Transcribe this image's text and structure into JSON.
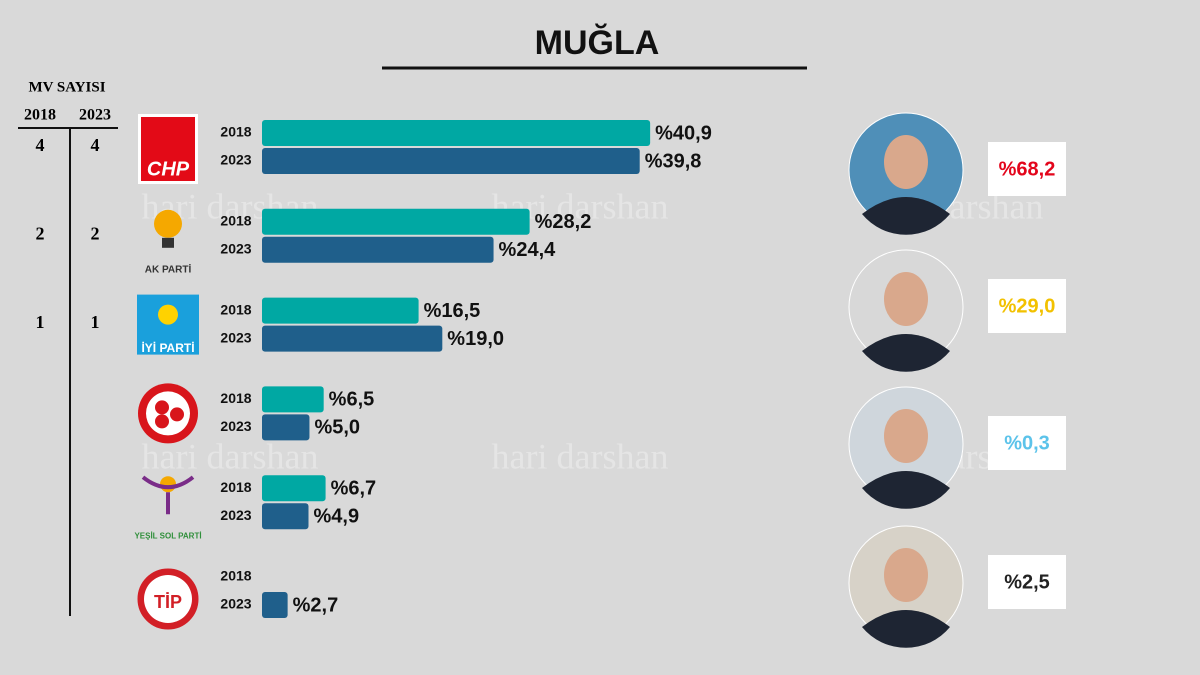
{
  "title": "MUĞLA",
  "watermark": "hari darshan",
  "seats": {
    "title": "MV SAYISI",
    "headers": [
      "2018",
      "2023"
    ],
    "rows": [
      [
        "4",
        "4"
      ],
      [
        "2",
        "2"
      ],
      [
        "1",
        "1"
      ]
    ]
  },
  "candidates": [
    {
      "label": "%68,2",
      "color": "#e3051b"
    },
    {
      "label": "%29,0",
      "color": "#f2c100"
    },
    {
      "label": "%0,3",
      "color": "#5cc3ea"
    },
    {
      "label": "%2,5",
      "color": "#222222"
    }
  ],
  "chart_data": {
    "type": "bar",
    "orientation": "horizontal",
    "categories": [
      "CHP",
      "AK PARTİ",
      "İYİ PARTİ",
      null,
      "YEŞİL SOL PARTİ",
      "TİP"
    ],
    "series": [
      {
        "name": "2018",
        "color": "#00a8a3",
        "values": [
          40.9,
          28.2,
          16.5,
          6.5,
          6.7,
          null
        ],
        "value_labels": [
          "%40,9",
          "%28,2",
          "%16,5",
          "%6,5",
          "%6,7",
          null
        ]
      },
      {
        "name": "2023",
        "color": "#1f5f8b",
        "values": [
          39.8,
          24.4,
          19.0,
          5.0,
          4.9,
          2.7
        ],
        "value_labels": [
          "%39,8",
          "%24,4",
          "%19,0",
          "%5,0",
          "%4,9",
          "%2,7"
        ]
      }
    ]
  }
}
